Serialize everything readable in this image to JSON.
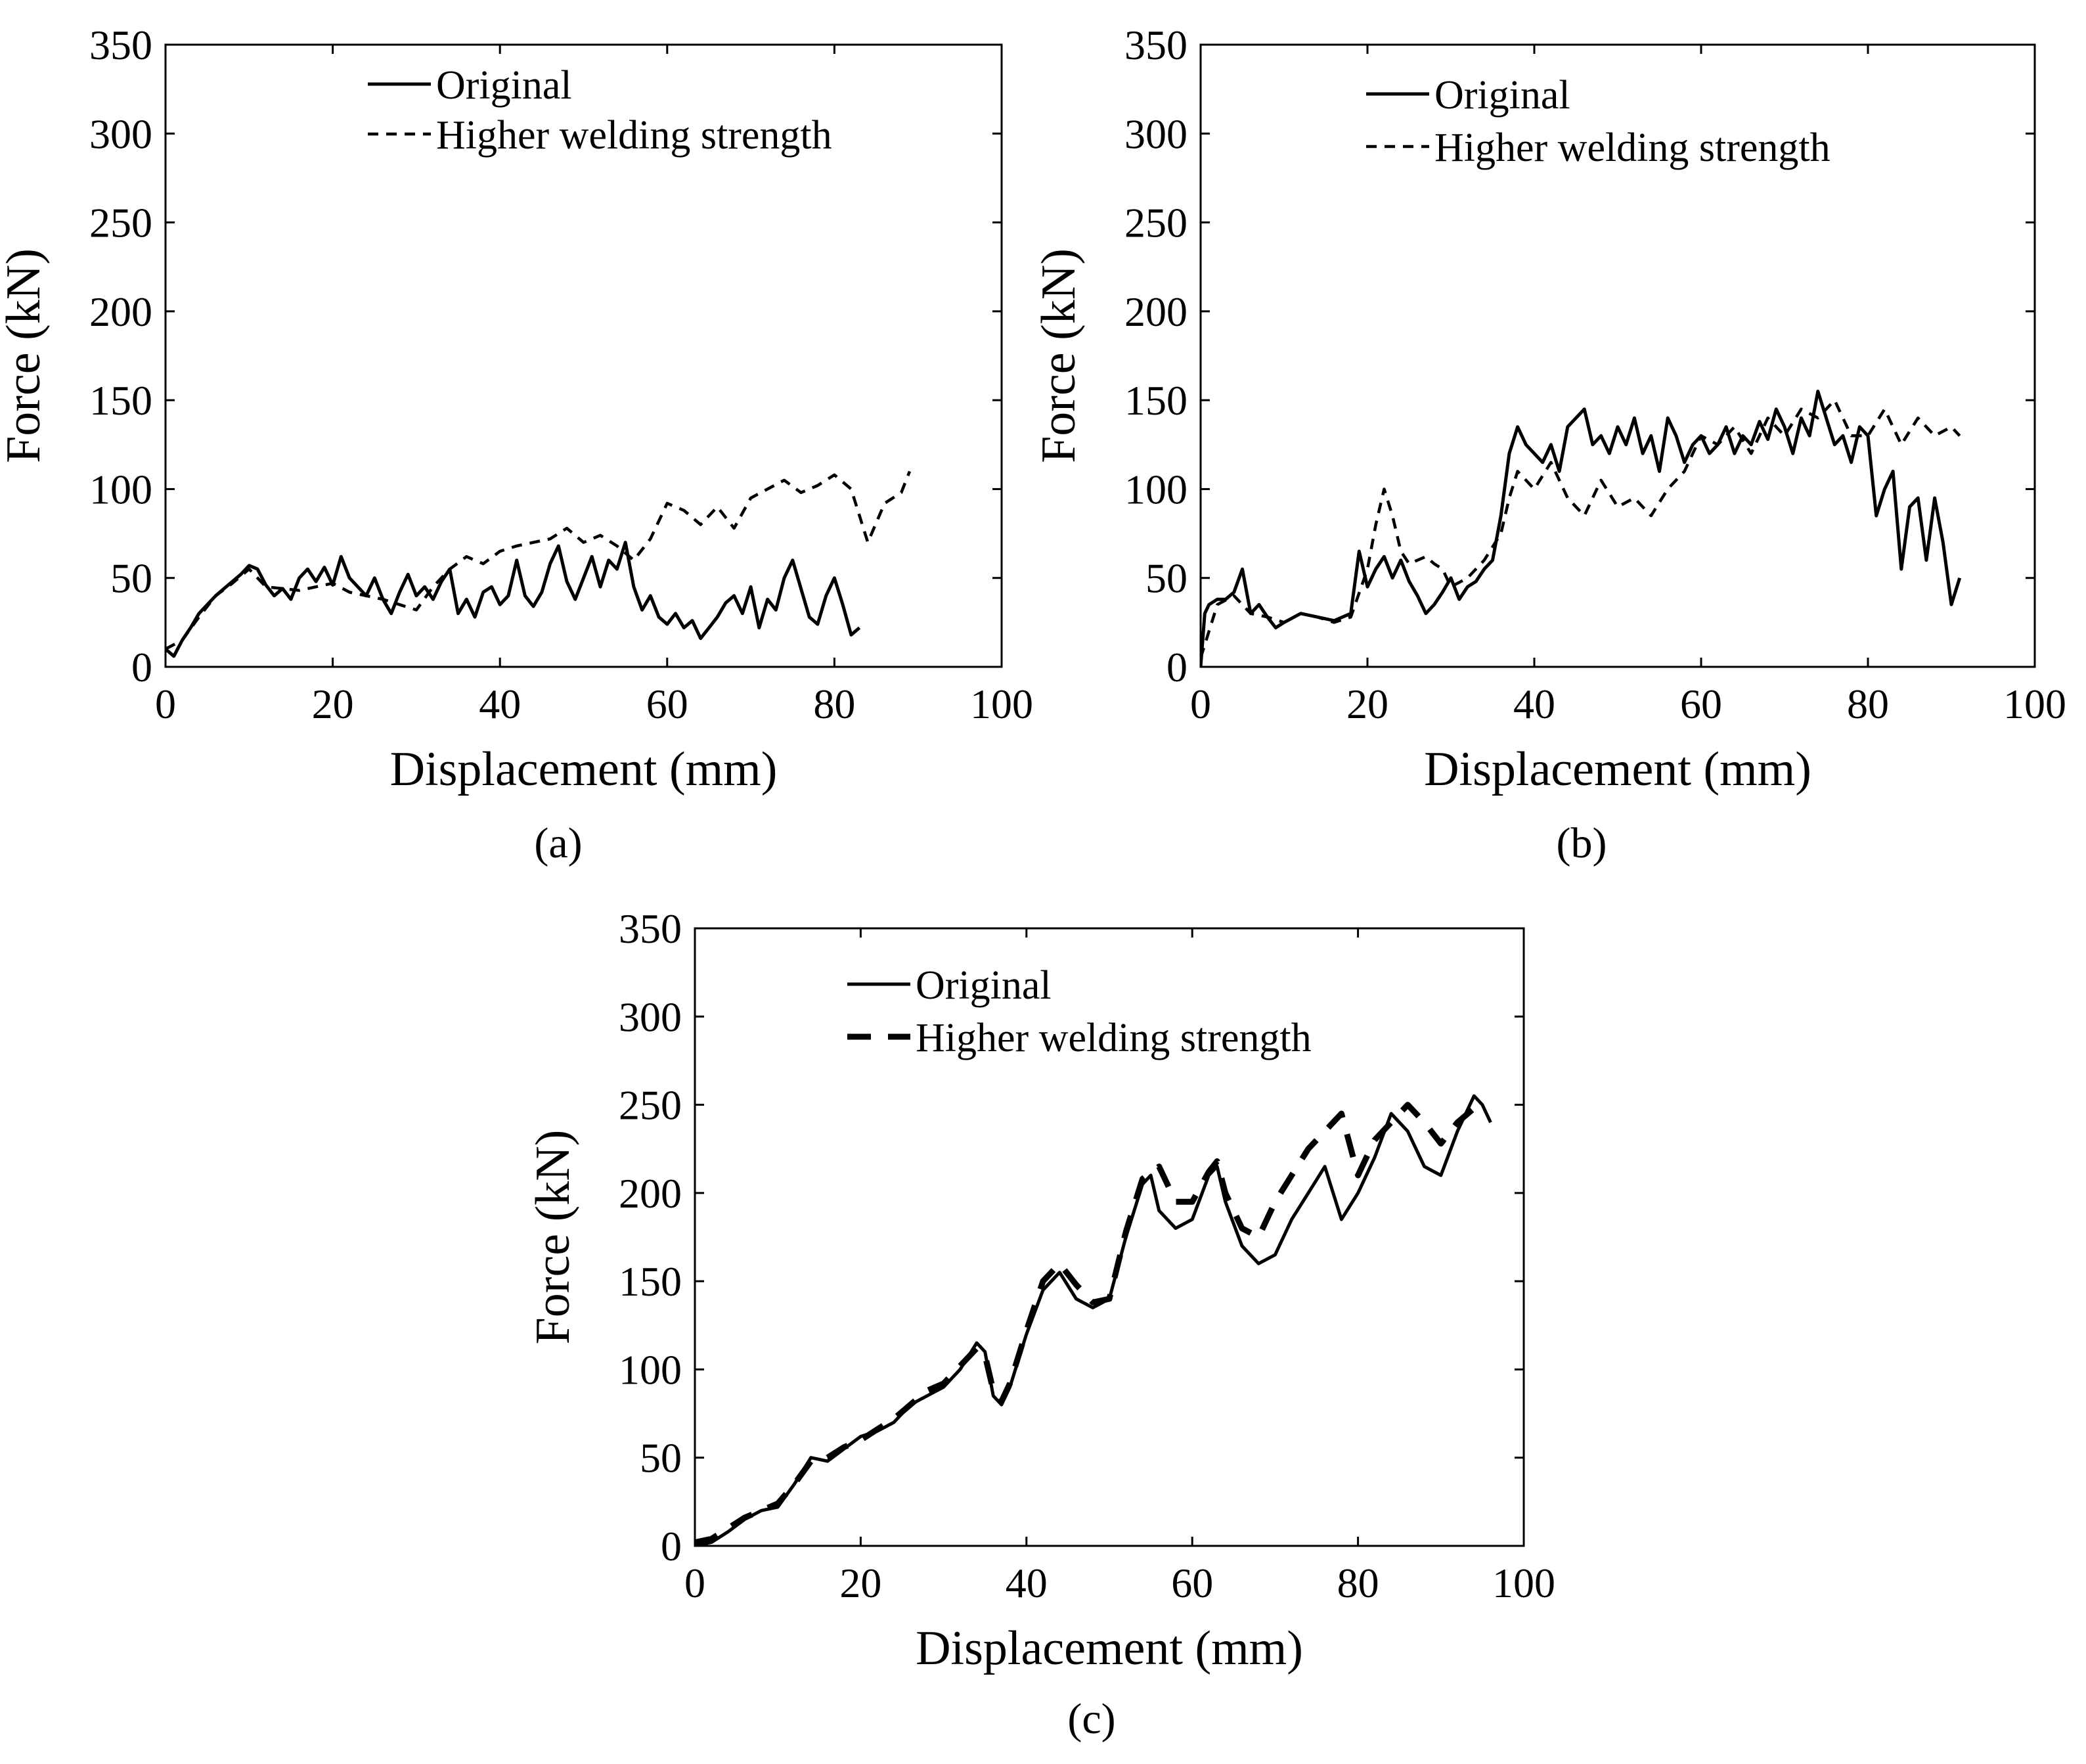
{
  "figure": {
    "panels": [
      "(a)",
      "(b)",
      "(c)"
    ]
  },
  "chart_data": [
    {
      "type": "line",
      "panel": "(a)",
      "title": "",
      "xlabel": "Displacement (mm)",
      "ylabel": "Force (kN)",
      "xlim": [
        0,
        100
      ],
      "ylim": [
        0,
        350
      ],
      "xticks": [
        0,
        20,
        40,
        60,
        80,
        100
      ],
      "yticks": [
        0,
        50,
        100,
        150,
        200,
        250,
        300,
        350
      ],
      "legend_position": "top-center",
      "series": [
        {
          "name": "Original",
          "style": "solid",
          "x": [
            0,
            1,
            2,
            3,
            4,
            5,
            6,
            7,
            8,
            9,
            10,
            11,
            12,
            13,
            14,
            15,
            16,
            17,
            18,
            19,
            20,
            21,
            22,
            23,
            24,
            25,
            26,
            27,
            28,
            29,
            30,
            31,
            32,
            33,
            34,
            35,
            36,
            37,
            38,
            39,
            40,
            41,
            42,
            43,
            44,
            45,
            46,
            47,
            48,
            49,
            50,
            51,
            52,
            53,
            54,
            55,
            56,
            57,
            58,
            59,
            60,
            61,
            62,
            63,
            64,
            65,
            66,
            67,
            68,
            69,
            70,
            71,
            72,
            73,
            74,
            75,
            76,
            77,
            78,
            79,
            80,
            81,
            82,
            83
          ],
          "y": [
            10,
            6,
            15,
            22,
            30,
            35,
            40,
            44,
            48,
            52,
            57,
            55,
            46,
            40,
            44,
            38,
            50,
            55,
            48,
            56,
            46,
            62,
            50,
            45,
            40,
            50,
            38,
            30,
            42,
            52,
            40,
            45,
            38,
            48,
            55,
            30,
            38,
            28,
            42,
            45,
            35,
            40,
            60,
            40,
            34,
            42,
            58,
            68,
            48,
            38,
            50,
            62,
            45,
            60,
            55,
            70,
            45,
            32,
            40,
            28,
            24,
            30,
            22,
            26,
            16,
            22,
            28,
            36,
            40,
            30,
            45,
            22,
            38,
            32,
            50,
            60,
            44,
            28,
            24,
            40,
            50,
            35,
            18,
            22
          ]
        },
        {
          "name": "Higher welding strength",
          "style": "dashed",
          "x": [
            0,
            2,
            4,
            6,
            8,
            10,
            12,
            14,
            16,
            18,
            20,
            22,
            24,
            26,
            28,
            30,
            32,
            34,
            36,
            38,
            40,
            42,
            44,
            46,
            48,
            50,
            52,
            54,
            56,
            58,
            60,
            62,
            64,
            66,
            68,
            70,
            72,
            74,
            76,
            78,
            80,
            82,
            84,
            86,
            88,
            89
          ],
          "y": [
            10,
            15,
            28,
            40,
            47,
            55,
            45,
            44,
            43,
            45,
            47,
            42,
            40,
            38,
            35,
            32,
            45,
            55,
            62,
            58,
            65,
            68,
            70,
            72,
            78,
            70,
            74,
            68,
            60,
            72,
            92,
            88,
            80,
            90,
            78,
            95,
            100,
            105,
            98,
            102,
            108,
            100,
            70,
            92,
            98,
            110
          ]
        }
      ]
    },
    {
      "type": "line",
      "panel": "(b)",
      "title": "",
      "xlabel": "Displacement (mm)",
      "ylabel": "Force (kN)",
      "xlim": [
        0,
        100
      ],
      "ylim": [
        0,
        350
      ],
      "xticks": [
        0,
        20,
        40,
        60,
        80,
        100
      ],
      "yticks": [
        0,
        50,
        100,
        150,
        200,
        250,
        300,
        350
      ],
      "legend_position": "top-left",
      "series": [
        {
          "name": "Original",
          "style": "solid",
          "x": [
            0,
            0.5,
            1,
            2,
            3,
            4,
            5,
            6,
            7,
            8,
            9,
            10,
            12,
            14,
            16,
            18,
            19,
            20,
            21,
            22,
            23,
            24,
            25,
            26,
            27,
            28,
            29,
            30,
            31,
            32,
            33,
            34,
            35,
            36,
            37,
            38,
            39,
            40,
            41,
            42,
            43,
            44,
            45,
            46,
            47,
            48,
            49,
            50,
            51,
            52,
            53,
            54,
            55,
            56,
            57,
            58,
            59,
            60,
            61,
            62,
            63,
            64,
            65,
            66,
            67,
            68,
            69,
            70,
            71,
            72,
            73,
            74,
            75,
            76,
            77,
            78,
            79,
            80,
            81,
            82,
            83,
            84,
            85,
            86,
            87,
            88,
            89,
            90,
            91
          ],
          "y": [
            0,
            30,
            35,
            38,
            38,
            42,
            55,
            30,
            35,
            28,
            22,
            25,
            30,
            28,
            26,
            30,
            65,
            45,
            55,
            62,
            50,
            60,
            48,
            40,
            30,
            35,
            42,
            50,
            38,
            45,
            48,
            55,
            60,
            85,
            120,
            135,
            125,
            120,
            115,
            125,
            110,
            135,
            140,
            145,
            125,
            130,
            120,
            135,
            125,
            140,
            120,
            130,
            110,
            140,
            130,
            115,
            125,
            130,
            120,
            125,
            135,
            120,
            130,
            125,
            138,
            128,
            145,
            135,
            120,
            140,
            130,
            155,
            140,
            125,
            130,
            115,
            135,
            130,
            85,
            100,
            110,
            55,
            90,
            95,
            60,
            95,
            70,
            35,
            50
          ]
        },
        {
          "name": "Higher welding strength",
          "style": "dashed",
          "x": [
            0,
            2,
            4,
            6,
            8,
            10,
            12,
            14,
            16,
            18,
            20,
            21,
            22,
            23,
            24,
            25,
            26,
            27,
            28,
            29,
            30,
            32,
            34,
            36,
            37,
            38,
            40,
            42,
            44,
            46,
            48,
            50,
            52,
            54,
            56,
            58,
            60,
            62,
            64,
            66,
            68,
            70,
            72,
            74,
            76,
            78,
            80,
            82,
            84,
            86,
            88,
            90,
            91
          ],
          "y": [
            5,
            35,
            40,
            30,
            28,
            25,
            30,
            28,
            25,
            28,
            55,
            80,
            100,
            85,
            65,
            58,
            60,
            62,
            58,
            55,
            45,
            50,
            60,
            75,
            95,
            110,
            100,
            115,
            95,
            85,
            105,
            90,
            95,
            85,
            100,
            110,
            130,
            125,
            135,
            120,
            140,
            130,
            145,
            140,
            150,
            130,
            130,
            145,
            125,
            140,
            130,
            135,
            130
          ]
        }
      ]
    },
    {
      "type": "line",
      "panel": "(c)",
      "title": "",
      "xlabel": "Displacement (mm)",
      "ylabel": "Force (kN)",
      "xlim": [
        0,
        100
      ],
      "ylim": [
        0,
        350
      ],
      "xticks": [
        0,
        20,
        40,
        60,
        80,
        100
      ],
      "yticks": [
        0,
        50,
        100,
        150,
        200,
        250,
        300,
        350
      ],
      "legend_position": "top-left",
      "series": [
        {
          "name": "Original",
          "style": "solid",
          "x": [
            0,
            2,
            4,
            6,
            8,
            10,
            12,
            14,
            16,
            18,
            20,
            22,
            24,
            26,
            28,
            30,
            32,
            34,
            35,
            36,
            37,
            38,
            40,
            42,
            44,
            46,
            48,
            50,
            52,
            54,
            55,
            56,
            58,
            60,
            62,
            63,
            64,
            66,
            68,
            70,
            72,
            74,
            76,
            78,
            80,
            82,
            84,
            86,
            88,
            90,
            92,
            94,
            95,
            96
          ],
          "y": [
            0,
            2,
            8,
            15,
            20,
            22,
            35,
            50,
            48,
            55,
            62,
            65,
            70,
            80,
            85,
            90,
            100,
            115,
            110,
            85,
            80,
            90,
            120,
            145,
            155,
            140,
            135,
            140,
            175,
            205,
            210,
            190,
            180,
            185,
            210,
            215,
            195,
            170,
            160,
            165,
            185,
            200,
            215,
            185,
            200,
            220,
            245,
            235,
            215,
            210,
            235,
            255,
            250,
            240
          ]
        },
        {
          "name": "Higher welding strength",
          "style": "dashed-bold",
          "x": [
            0,
            2,
            4,
            6,
            8,
            10,
            12,
            14,
            16,
            18,
            20,
            22,
            24,
            26,
            28,
            30,
            32,
            34,
            35,
            36,
            37,
            38,
            40,
            42,
            44,
            46,
            48,
            50,
            52,
            54,
            56,
            58,
            60,
            62,
            63,
            64,
            66,
            68,
            70,
            72,
            74,
            76,
            78,
            80,
            82,
            84,
            86,
            88,
            90,
            92,
            94
          ],
          "y": [
            2,
            4,
            10,
            16,
            20,
            24,
            35,
            48,
            50,
            56,
            60,
            66,
            72,
            80,
            88,
            92,
            102,
            112,
            108,
            88,
            82,
            92,
            122,
            150,
            160,
            148,
            138,
            140,
            178,
            208,
            215,
            195,
            195,
            212,
            218,
            200,
            180,
            175,
            195,
            210,
            225,
            235,
            245,
            210,
            230,
            240,
            250,
            240,
            228,
            240,
            248
          ]
        }
      ]
    }
  ]
}
